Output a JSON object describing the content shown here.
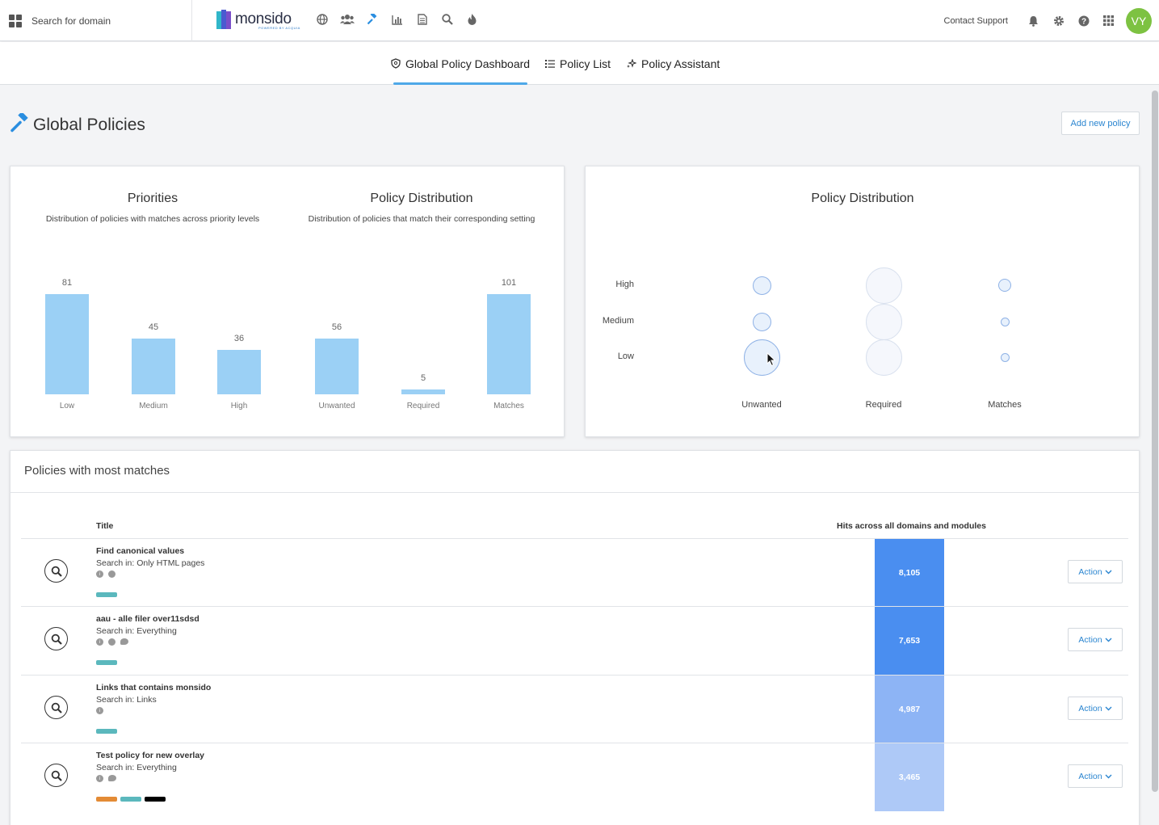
{
  "header": {
    "domain_search_placeholder": "Search for domain",
    "logo_text": "monsido",
    "logo_sub": "POWERED BY ACQUIA",
    "contact_support": "Contact Support",
    "avatar_initials": "VY"
  },
  "tabs": [
    {
      "label": "Global Policy Dashboard",
      "active": true
    },
    {
      "label": "Policy List",
      "active": false
    },
    {
      "label": "Policy Assistant",
      "active": false
    }
  ],
  "page": {
    "title": "Global Policies",
    "add_button": "Add new policy"
  },
  "colors": {
    "accent": "#4ea8e8",
    "bar": "#9bd0f5",
    "avatar": "#7dc242",
    "link": "#2a85d0"
  },
  "chart_data": [
    {
      "type": "bar",
      "title": "Priorities",
      "subtitle": "Distribution of policies with matches across priority levels",
      "categories": [
        "Low",
        "Medium",
        "High"
      ],
      "values": [
        81,
        45,
        36
      ],
      "ylim": [
        0,
        81
      ]
    },
    {
      "type": "bar",
      "title": "Policy Distribution",
      "subtitle": "Distribution of policies that match their corresponding setting",
      "categories": [
        "Unwanted",
        "Required",
        "Matches"
      ],
      "values": [
        56,
        5,
        101
      ],
      "ylim": [
        0,
        101
      ]
    },
    {
      "type": "scatter",
      "title": "Policy Distribution",
      "x_categories": [
        "Unwanted",
        "Required",
        "Matches"
      ],
      "y_categories": [
        "High",
        "Medium",
        "Low"
      ],
      "points": [
        {
          "x": "Unwanted",
          "y": "High",
          "size": 2
        },
        {
          "x": "Unwanted",
          "y": "Medium",
          "size": 2
        },
        {
          "x": "Unwanted",
          "y": "Low",
          "size": 4
        },
        {
          "x": "Required",
          "y": "High",
          "size": 4
        },
        {
          "x": "Required",
          "y": "Medium",
          "size": 4
        },
        {
          "x": "Required",
          "y": "Low",
          "size": 4
        },
        {
          "x": "Matches",
          "y": "High",
          "size": 1.4
        },
        {
          "x": "Matches",
          "y": "Medium",
          "size": 1
        },
        {
          "x": "Matches",
          "y": "Low",
          "size": 1
        }
      ]
    }
  ],
  "table": {
    "title": "Policies with most matches",
    "col_title": "Title",
    "col_hits": "Hits across all domains and modules",
    "rows": [
      {
        "title": "Find canonical values",
        "search_in": "Search in: Only HTML pages",
        "icons": [
          "info-icon",
          "clock-icon"
        ],
        "tags": [
          "#5bb8bd"
        ],
        "hits": "8,105",
        "hits_color": "#4a8ef0",
        "action": "Action"
      },
      {
        "title": "aau - alle filer over11sdsd",
        "search_in": "Search in: Everything",
        "icons": [
          "info-icon",
          "clock-icon",
          "comment-icon"
        ],
        "tags": [
          "#5bb8bd"
        ],
        "hits": "7,653",
        "hits_color": "#4a8ef0",
        "action": "Action"
      },
      {
        "title": "Links that contains monsido",
        "search_in": "Search in: Links",
        "icons": [
          "info-icon"
        ],
        "tags": [
          "#5bb8bd"
        ],
        "hits": "4,987",
        "hits_color": "#8db4f5",
        "action": "Action"
      },
      {
        "title": "Test policy for new overlay",
        "search_in": "Search in: Everything",
        "icons": [
          "info-icon",
          "comment-icon"
        ],
        "tags": [
          "#e38b35",
          "#5bb8bd",
          "#000000"
        ],
        "hits": "3,465",
        "hits_color": "#aec9f7",
        "action": "Action"
      }
    ]
  }
}
